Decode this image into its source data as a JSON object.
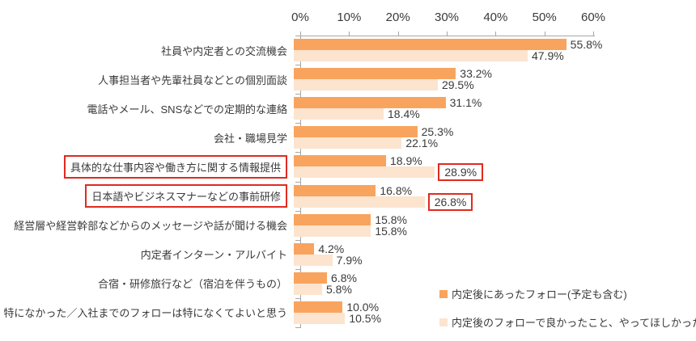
{
  "chart_data": {
    "type": "bar",
    "orientation": "horizontal",
    "title": "",
    "xlabel": "",
    "ylabel": "",
    "xlim": [
      0,
      60
    ],
    "x_ticks": [
      "0%",
      "10%",
      "20%",
      "30%",
      "40%",
      "50%",
      "60%"
    ],
    "grid": false,
    "legend_position": "bottom-right",
    "categories": [
      "社員や内定者との交流機会",
      "人事担当者や先輩社員などとの個別面談",
      "電話やメール、SNSなどでの定期的な連絡",
      "会社・職場見学",
      "具体的な仕事内容や働き方に関する情報提供",
      "日本語やビジネスマナーなどの事前研修",
      "経営層や経営幹部などからのメッセージや話が聞ける機会",
      "内定者インターン・アルバイト",
      "合宿・研修旅行など（宿泊を伴うもの）",
      "特になかった／入社までのフォローは特になくてよいと思う"
    ],
    "series": [
      {
        "name": "内定後にあったフォロー(予定も含む)",
        "color": "#F9A45E",
        "values": [
          55.8,
          33.2,
          31.1,
          25.3,
          18.9,
          16.8,
          15.8,
          4.2,
          6.8,
          10.0
        ],
        "labels": [
          "55.8%",
          "33.2%",
          "31.1%",
          "25.3%",
          "18.9%",
          "16.8%",
          "15.8%",
          "4.2%",
          "6.8%",
          "10.0%"
        ]
      },
      {
        "name": "内定後のフォローで良かったこと、やってほしかったこと",
        "color": "#FCE4CF",
        "values": [
          47.9,
          29.5,
          18.4,
          22.1,
          28.9,
          26.8,
          15.8,
          7.9,
          5.8,
          10.5
        ],
        "labels": [
          "47.9%",
          "29.5%",
          "18.4%",
          "22.1%",
          "28.9%",
          "26.8%",
          "15.8%",
          "7.9%",
          "5.8%",
          "10.5%"
        ]
      }
    ],
    "annotations": {
      "boxed_category_indexes": [
        4,
        5
      ],
      "boxed_value_series2_indexes": [
        4,
        5
      ]
    }
  },
  "colors": {
    "bar_dark": "#F9A45E",
    "bar_light": "#FCE4CF",
    "highlight_red": "#DF2B20",
    "axis_gray": "#A6A6A6",
    "text": "#3A3A3A"
  }
}
